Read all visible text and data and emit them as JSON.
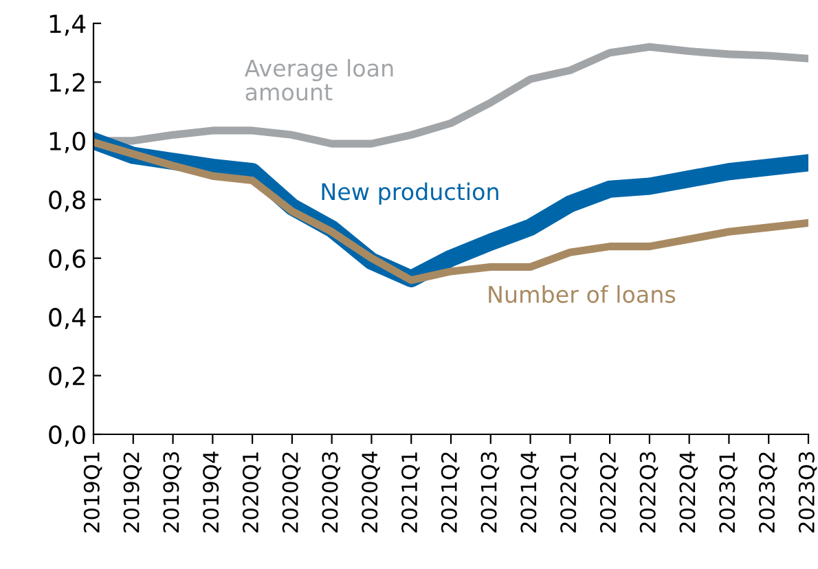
{
  "chart_data": {
    "type": "line",
    "categories": [
      "2019Q1",
      "2019Q2",
      "2019Q3",
      "2019Q4",
      "2020Q1",
      "2020Q2",
      "2020Q3",
      "2020Q4",
      "2021Q1",
      "2021Q2",
      "2021Q3",
      "2021Q4",
      "2022Q1",
      "2022Q2",
      "2022Q3",
      "2022Q4",
      "2023Q1",
      "2023Q2",
      "2023Q3"
    ],
    "series": [
      {
        "name": "Average loan amount",
        "color": "#a2a5a8",
        "values": [
          1.0,
          1.0,
          1.02,
          1.035,
          1.035,
          1.02,
          0.99,
          0.99,
          1.02,
          1.06,
          1.13,
          1.21,
          1.24,
          1.3,
          1.32,
          1.305,
          1.295,
          1.29,
          1.28
        ]
      },
      {
        "name": "New production",
        "color": "#0066aa",
        "values": [
          1.0,
          0.95,
          0.93,
          0.91,
          0.895,
          0.775,
          0.7,
          0.59,
          0.53,
          0.6,
          0.655,
          0.705,
          0.785,
          0.835,
          0.845,
          0.87,
          0.895,
          0.91,
          0.925
        ]
      },
      {
        "name": "Number of loans",
        "color": "#a88a62",
        "values": [
          0.995,
          0.955,
          0.915,
          0.88,
          0.865,
          0.76,
          0.69,
          0.6,
          0.525,
          0.555,
          0.57,
          0.57,
          0.62,
          0.64,
          0.64,
          0.665,
          0.69,
          0.705,
          0.72
        ]
      }
    ],
    "ylim": [
      0,
      1.4
    ],
    "yticks": [
      {
        "value": 0,
        "label": "0,0"
      },
      {
        "value": 0.2,
        "label": "0,2"
      },
      {
        "value": 0.4,
        "label": "0,4"
      },
      {
        "value": 0.6,
        "label": "0,6"
      },
      {
        "value": 0.8,
        "label": "0,8"
      },
      {
        "value": 1.0,
        "label": "1,0"
      },
      {
        "value": 1.2,
        "label": "1,2"
      },
      {
        "value": 1.4,
        "label": "1,4"
      }
    ],
    "grid": false,
    "legend": false,
    "marker": "none",
    "line_style": "solid"
  }
}
